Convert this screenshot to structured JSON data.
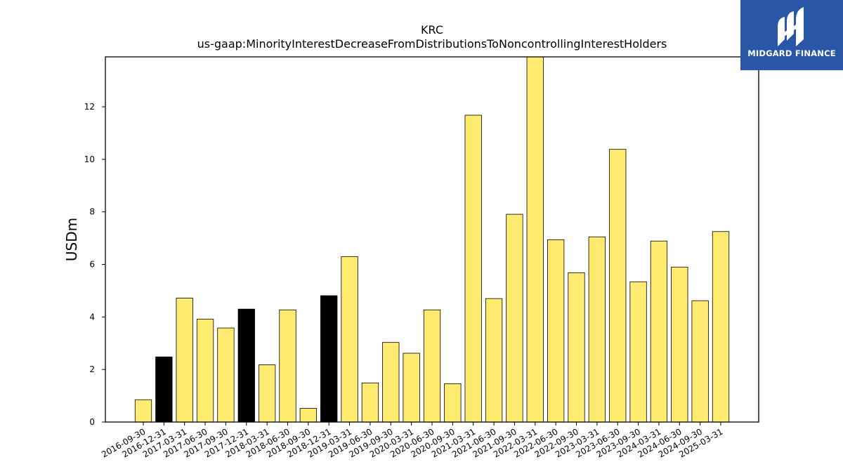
{
  "chart_data": {
    "type": "bar",
    "title": "KRC",
    "subtitle": "us-gaap:MinorityInterestDecreaseFromDistributionsToNoncontrollingInterestHolders",
    "xlabel": "",
    "ylabel": "USDm",
    "ylim": [
      0,
      13.9
    ],
    "yticks": [
      0,
      2,
      4,
      6,
      8,
      10,
      12
    ],
    "grid": false,
    "categories": [
      "2016-09-30",
      "2016-12-31",
      "2017-03-31",
      "2017-06-30",
      "2017-09-30",
      "2017-12-31",
      "2018-03-31",
      "2018-06-30",
      "2018-09-30",
      "2018-12-31",
      "2019-03-31",
      "2019-06-30",
      "2019-09-30",
      "2020-03-31",
      "2020-06-30",
      "2020-09-30",
      "2021-03-31",
      "2021-06-30",
      "2021-09-30",
      "2022-03-31",
      "2022-06-30",
      "2022-09-30",
      "2023-03-31",
      "2023-06-30",
      "2023-09-30",
      "2024-03-31",
      "2024-06-30",
      "2024-09-30",
      "2025-03-31"
    ],
    "values": [
      0.85,
      2.48,
      4.72,
      3.92,
      3.58,
      4.3,
      2.18,
      4.27,
      0.52,
      4.81,
      6.3,
      1.49,
      3.03,
      2.62,
      4.27,
      1.46,
      11.68,
      4.7,
      7.91,
      13.9,
      6.94,
      5.68,
      7.05,
      10.38,
      5.34,
      6.89,
      5.9,
      4.62,
      7.25
    ],
    "bar_colors": [
      "#ffeb70",
      "#000000",
      "#ffeb70",
      "#ffeb70",
      "#ffeb70",
      "#000000",
      "#ffeb70",
      "#ffeb70",
      "#ffeb70",
      "#000000",
      "#ffeb70",
      "#ffeb70",
      "#ffeb70",
      "#ffeb70",
      "#ffeb70",
      "#ffeb70",
      "#ffeb70",
      "#ffeb70",
      "#ffeb70",
      "#ffeb70",
      "#ffeb70",
      "#ffeb70",
      "#ffeb70",
      "#ffeb70",
      "#ffeb70",
      "#ffeb70",
      "#ffeb70",
      "#ffeb70",
      "#ffeb70"
    ]
  },
  "logo": {
    "text": "MIDGARD FINANCE",
    "bg_color": "#2a56a8"
  }
}
